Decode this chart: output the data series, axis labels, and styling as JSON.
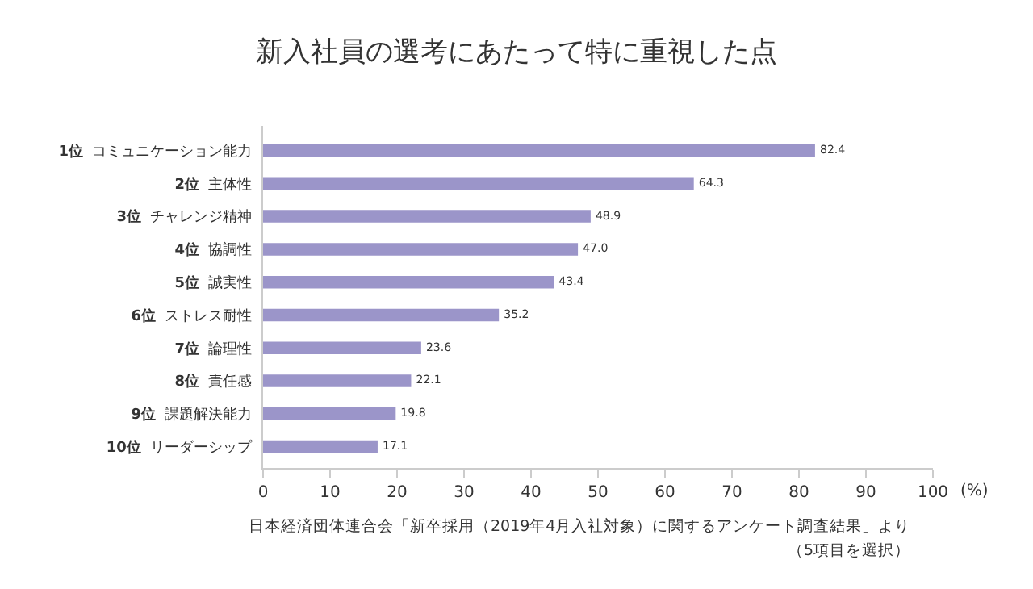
{
  "chart_data": {
    "type": "bar",
    "orientation": "horizontal",
    "title": "新入社員の選考にあたって特に重視した点",
    "xlabel": "(%)",
    "categories": [
      "1位 コミュニケーション能力",
      "2位 主体性",
      "3位 チャレンジ精神",
      "4位 協調性",
      "5位 誠実性",
      "6位 ストレス耐性",
      "7位 論理性",
      "8位 責任感",
      "9位 課題解決能力",
      "10位 リーダーシップ"
    ],
    "values": [
      82.4,
      64.3,
      48.9,
      47.0,
      43.4,
      35.2,
      23.6,
      22.1,
      19.8,
      17.1
    ],
    "value_labels": [
      "82.4",
      "64.3",
      "48.9",
      "47.0",
      "43.4",
      "35.2",
      "23.6",
      "22.1",
      "19.8",
      "17.1"
    ],
    "color": "#9b95c9",
    "xlim": [
      0,
      100
    ],
    "xticks": [
      0,
      10,
      20,
      30,
      40,
      50,
      60,
      70,
      80,
      90,
      100
    ],
    "grid": false,
    "legend": false,
    "annotations": [
      "日本経済団体連合会「新卒採用（2019年4月入社対象）に関するアンケート調査結果」より",
      "（5項目を選択）"
    ]
  }
}
